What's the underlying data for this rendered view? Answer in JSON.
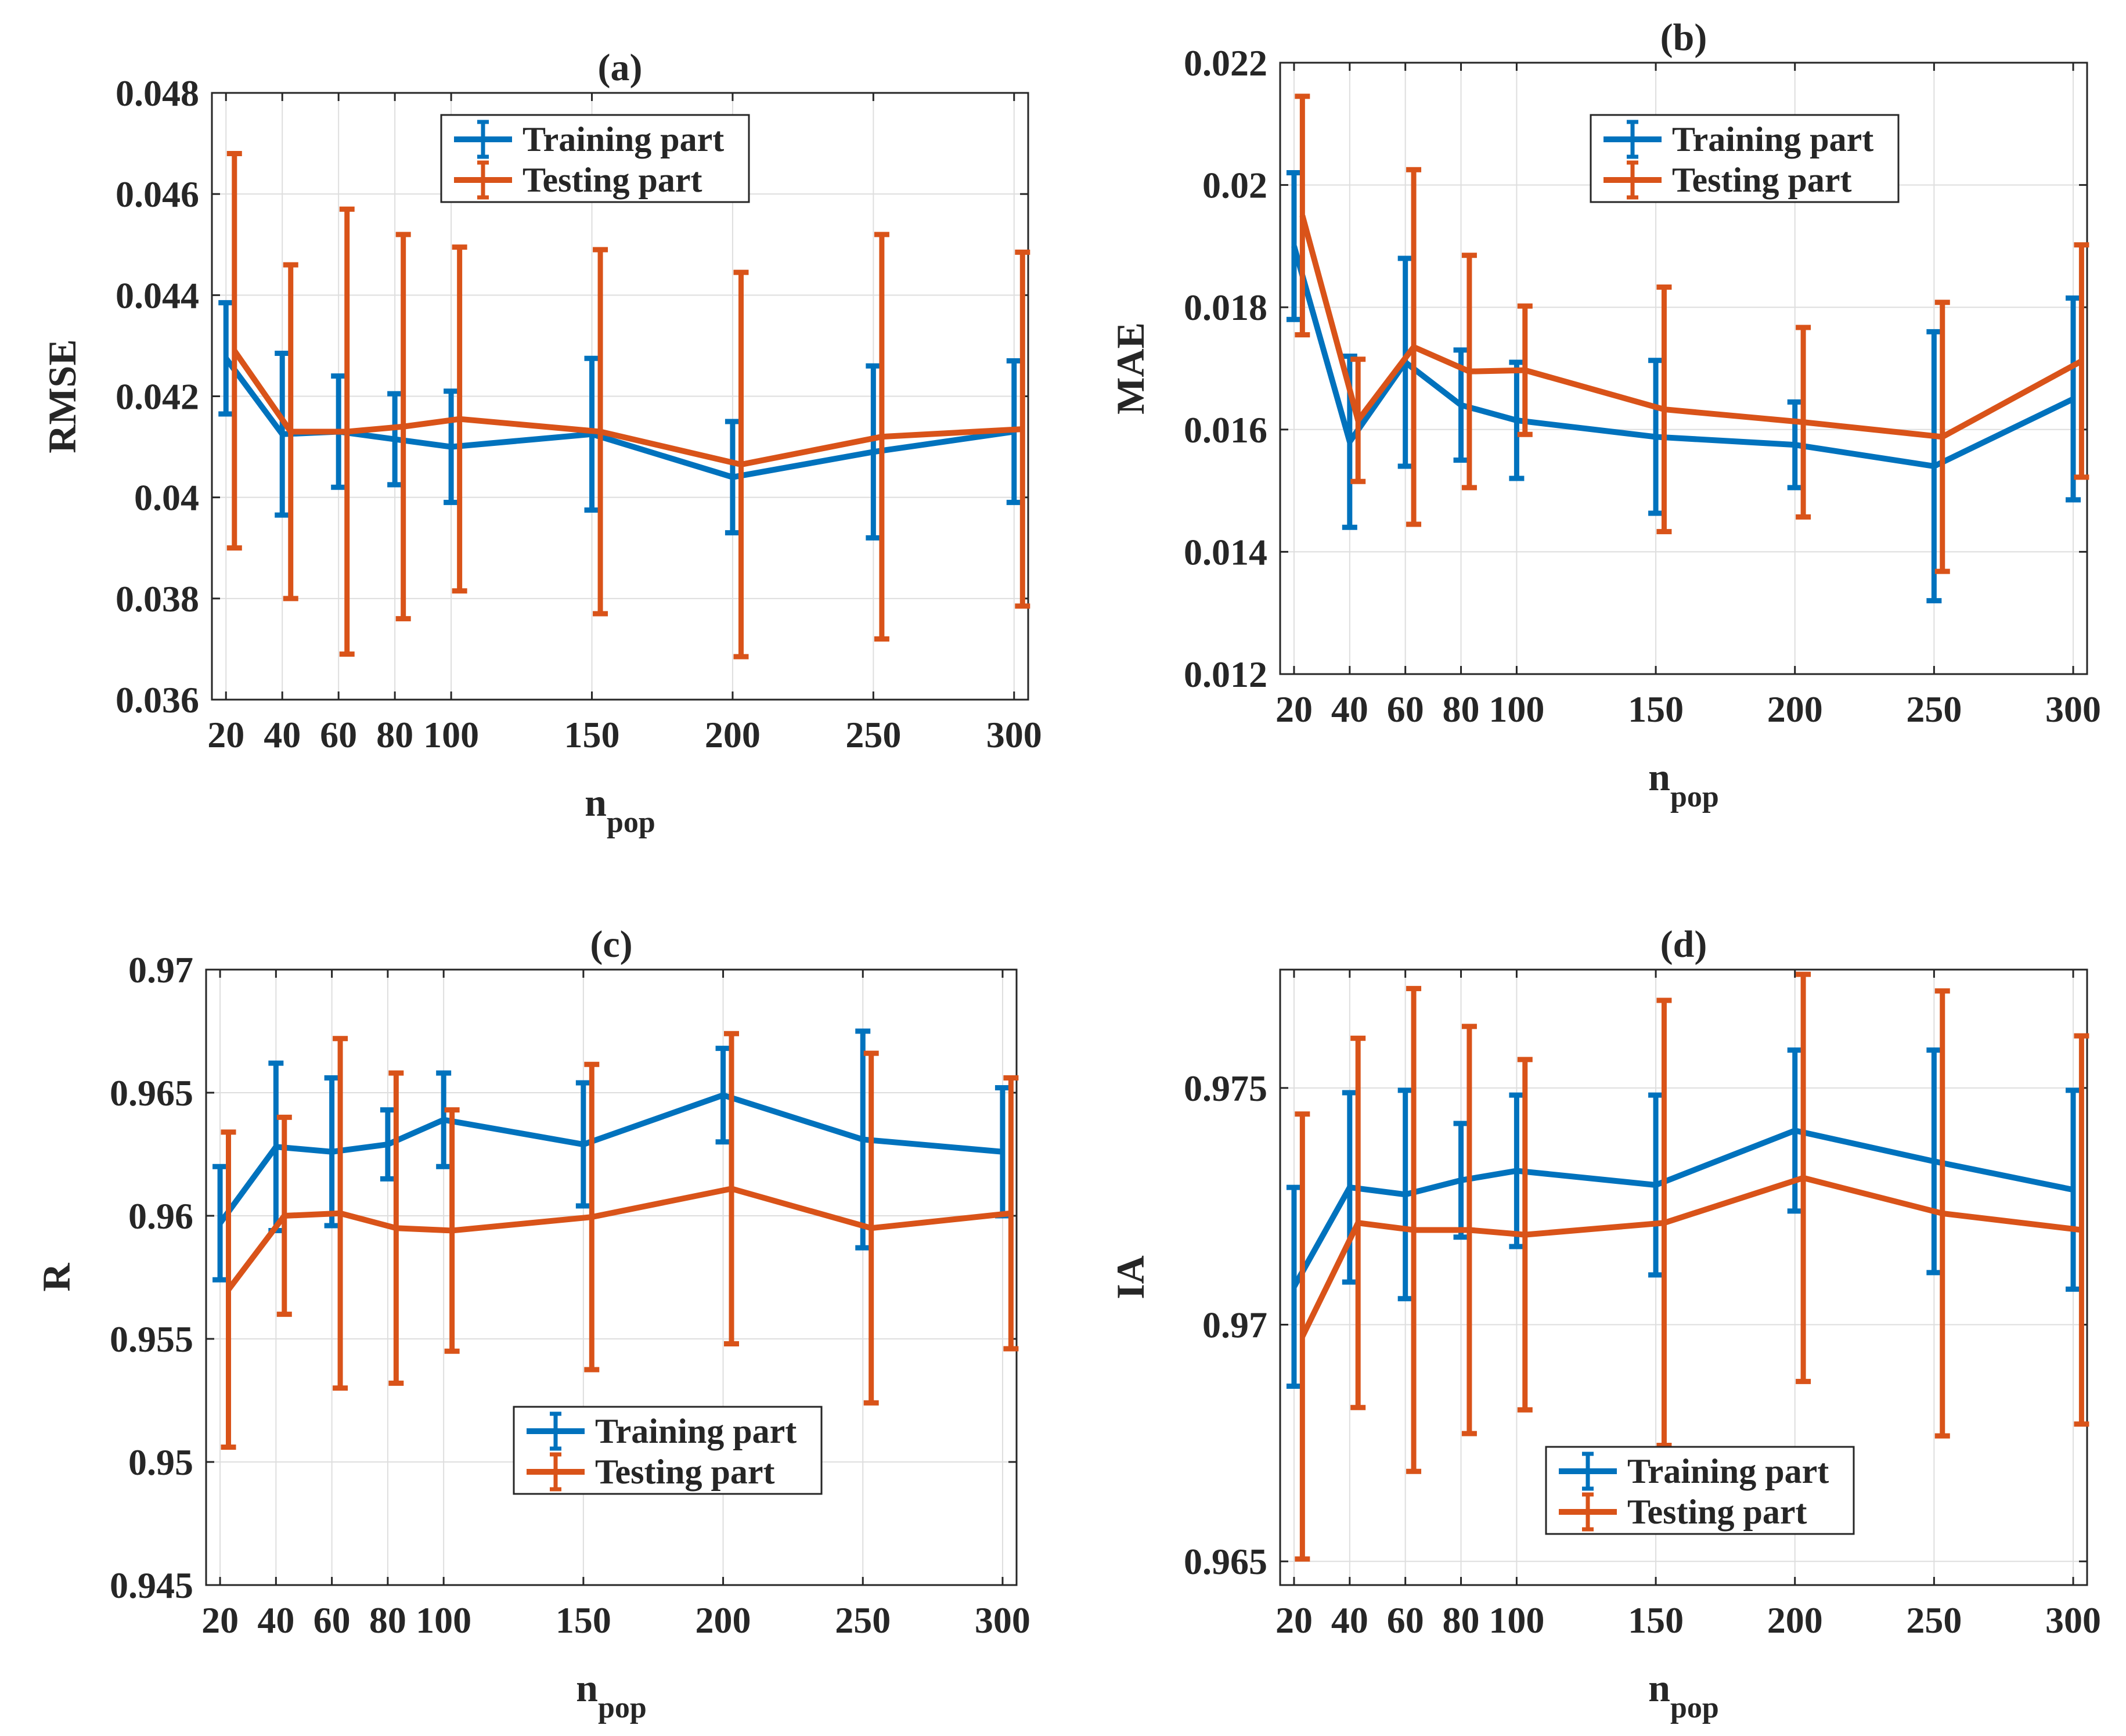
{
  "figure": {
    "colors": {
      "training": "#0072BD",
      "testing": "#D95319",
      "axis": "#262626",
      "grid": "#dedede"
    }
  },
  "chart_data": [
    {
      "type": "line",
      "panel": "a",
      "title": "(a)",
      "xlabel": "n",
      "xlabel_sub": "pop",
      "ylabel": "RMSE",
      "xlim": [
        15,
        305
      ],
      "ylim": [
        0.036,
        0.048
      ],
      "x": [
        20,
        40,
        60,
        80,
        100,
        150,
        200,
        250,
        300
      ],
      "xticks": [
        20,
        40,
        60,
        80,
        100,
        150,
        200,
        250,
        300
      ],
      "xtick_labels": [
        "20",
        "40",
        "60",
        "80",
        "100",
        "150",
        "200",
        "250",
        "300"
      ],
      "yticks": [
        0.036,
        0.038,
        0.04,
        0.042,
        0.044,
        0.046,
        0.048
      ],
      "ytick_labels": [
        "0.036",
        "0.038",
        "0.04",
        "0.042",
        "0.044",
        "0.046",
        "0.048"
      ],
      "legend": {
        "position": "top-center"
      },
      "series": [
        {
          "name": "Training part",
          "x_offset": 0,
          "values": [
            0.04275,
            0.04125,
            0.0413,
            0.04115,
            0.041,
            0.04125,
            0.0404,
            0.0409,
            0.0413
          ],
          "errors": [
            0.0011,
            0.0016,
            0.0011,
            0.0009,
            0.0011,
            0.0015,
            0.0011,
            0.0017,
            0.0014
          ]
        },
        {
          "name": "Testing part",
          "x_offset": 3,
          "values": [
            0.0429,
            0.0413,
            0.0413,
            0.0414,
            0.04155,
            0.0413,
            0.04065,
            0.0412,
            0.04135
          ],
          "errors": [
            0.0039,
            0.0033,
            0.0044,
            0.0038,
            0.0034,
            0.0036,
            0.0038,
            0.004,
            0.0035
          ]
        }
      ]
    },
    {
      "type": "line",
      "panel": "b",
      "title": "(b)",
      "xlabel": "n",
      "xlabel_sub": "pop",
      "ylabel": "MAE",
      "xlim": [
        15,
        305
      ],
      "ylim": [
        0.012,
        0.022
      ],
      "x": [
        20,
        40,
        60,
        80,
        100,
        150,
        200,
        250,
        300
      ],
      "xticks": [
        20,
        40,
        60,
        80,
        100,
        150,
        200,
        250,
        300
      ],
      "xtick_labels": [
        "20",
        "40",
        "60",
        "80",
        "100",
        "150",
        "200",
        "250",
        "300"
      ],
      "yticks": [
        0.012,
        0.014,
        0.016,
        0.018,
        0.02,
        0.022
      ],
      "ytick_labels": [
        "0.012",
        "0.014",
        "0.016",
        "0.018",
        "0.02",
        "0.022"
      ],
      "legend": {
        "position": "top-center"
      },
      "series": [
        {
          "name": "Training part",
          "x_offset": 0,
          "values": [
            0.019,
            0.0158,
            0.0171,
            0.0164,
            0.01615,
            0.01588,
            0.01575,
            0.0154,
            0.0165
          ],
          "errors": [
            0.0012,
            0.0014,
            0.0017,
            0.0009,
            0.00095,
            0.00125,
            0.0007,
            0.0022,
            0.00165
          ]
        },
        {
          "name": "Testing part",
          "x_offset": 3,
          "values": [
            0.0195,
            0.01615,
            0.01735,
            0.01695,
            0.01697,
            0.01633,
            0.01612,
            0.01588,
            0.01712
          ],
          "errors": [
            0.00195,
            0.001,
            0.0029,
            0.0019,
            0.00105,
            0.002,
            0.00155,
            0.0022,
            0.0019
          ]
        }
      ]
    },
    {
      "type": "line",
      "panel": "c",
      "title": "(c)",
      "xlabel": "n",
      "xlabel_sub": "pop",
      "ylabel": "R",
      "xlim": [
        15,
        305
      ],
      "ylim": [
        0.945,
        0.97
      ],
      "x": [
        20,
        40,
        60,
        80,
        100,
        150,
        200,
        250,
        300
      ],
      "xticks": [
        20,
        40,
        60,
        80,
        100,
        150,
        200,
        250,
        300
      ],
      "xtick_labels": [
        "20",
        "40",
        "60",
        "80",
        "100",
        "150",
        "200",
        "250",
        "300"
      ],
      "yticks": [
        0.945,
        0.95,
        0.955,
        0.96,
        0.965,
        0.97
      ],
      "ytick_labels": [
        "0.945",
        "0.95",
        "0.955",
        "0.96",
        "0.965",
        "0.97"
      ],
      "legend": {
        "position": "bottom-center"
      },
      "series": [
        {
          "name": "Training part",
          "x_offset": 0,
          "values": [
            0.9597,
            0.9628,
            0.9626,
            0.9629,
            0.9639,
            0.9629,
            0.9649,
            0.9631,
            0.9626
          ],
          "errors": [
            0.0023,
            0.0034,
            0.003,
            0.0014,
            0.0019,
            0.0025,
            0.0019,
            0.0044,
            0.0026
          ]
        },
        {
          "name": "Testing part",
          "x_offset": 3,
          "values": [
            0.957,
            0.96,
            0.9601,
            0.9595,
            0.9594,
            0.95995,
            0.9611,
            0.9595,
            0.9601
          ],
          "errors": [
            0.0064,
            0.004,
            0.0071,
            0.0063,
            0.0049,
            0.0062,
            0.0063,
            0.0071,
            0.0055
          ]
        }
      ]
    },
    {
      "type": "line",
      "panel": "d",
      "title": "(d)",
      "xlabel": "n",
      "xlabel_sub": "pop",
      "ylabel": "IA",
      "xlim": [
        15,
        305
      ],
      "ylim": [
        0.9645,
        0.9775
      ],
      "x": [
        20,
        40,
        60,
        80,
        100,
        150,
        200,
        250,
        300
      ],
      "xticks": [
        20,
        40,
        60,
        80,
        100,
        150,
        200,
        250,
        300
      ],
      "xtick_labels": [
        "20",
        "40",
        "60",
        "80",
        "100",
        "150",
        "200",
        "250",
        "300"
      ],
      "yticks": [
        0.965,
        0.97,
        0.975
      ],
      "ytick_labels": [
        "0.965",
        "0.97",
        "0.975"
      ],
      "legend": {
        "position": "bottom-center"
      },
      "series": [
        {
          "name": "Training part",
          "x_offset": 0,
          "values": [
            0.9708,
            0.9729,
            0.97275,
            0.97305,
            0.97325,
            0.97295,
            0.9741,
            0.97345,
            0.97285
          ],
          "errors": [
            0.0021,
            0.002,
            0.0022,
            0.0012,
            0.0016,
            0.0019,
            0.0017,
            0.00235,
            0.0021
          ]
        },
        {
          "name": "Testing part",
          "x_offset": 3,
          "values": [
            0.96975,
            0.97215,
            0.972,
            0.972,
            0.9719,
            0.97215,
            0.9731,
            0.97235,
            0.972
          ],
          "errors": [
            0.0047,
            0.0039,
            0.0051,
            0.0043,
            0.0037,
            0.0047,
            0.0043,
            0.0047,
            0.0041
          ]
        }
      ]
    }
  ]
}
